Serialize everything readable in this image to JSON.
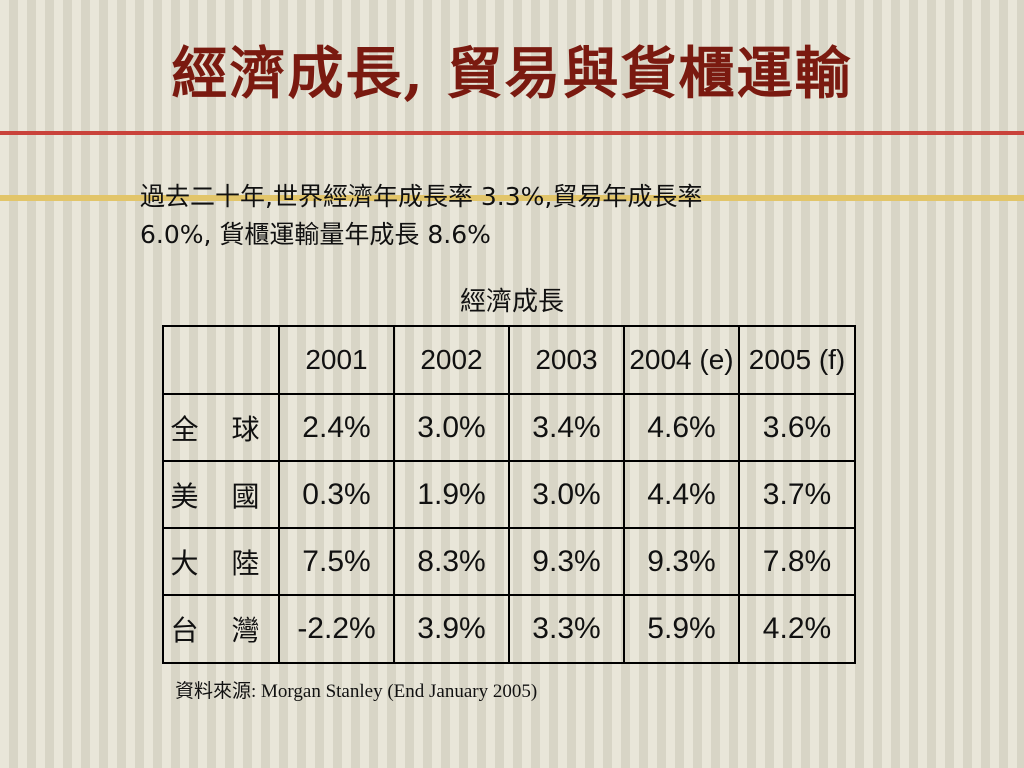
{
  "slide": {
    "title": "經濟成長, 貿易與貨櫃運輸",
    "summary_line1": "過去二十年,世界經濟年成長率 3.3%,貿易年成長率",
    "summary_line2": "6.0%, 貨櫃運輸量年成長 8.6%",
    "table_caption": "經濟成長",
    "source": "資料來源: Morgan Stanley (End January 2005)"
  },
  "table": {
    "corner": "",
    "columns": [
      "2001",
      "2002",
      "2003",
      "2004 (e)",
      "2005 (f)"
    ],
    "rows": [
      {
        "label": "全 球",
        "values": [
          "2.4%",
          "3.0%",
          "3.4%",
          "4.6%",
          "3.6%"
        ]
      },
      {
        "label": "美 國",
        "values": [
          "0.3%",
          "1.9%",
          "3.0%",
          "4.4%",
          "3.7%"
        ]
      },
      {
        "label": "大 陸",
        "values": [
          "7.5%",
          "8.3%",
          "9.3%",
          "9.3%",
          "7.8%"
        ]
      },
      {
        "label": "台 灣",
        "values": [
          "-2.2%",
          "3.9%",
          "3.3%",
          "5.9%",
          "4.2%"
        ]
      }
    ]
  },
  "colors": {
    "title": "#7a1a10",
    "rule_red": "#c9423a",
    "rule_gold": "#e2c56a"
  }
}
